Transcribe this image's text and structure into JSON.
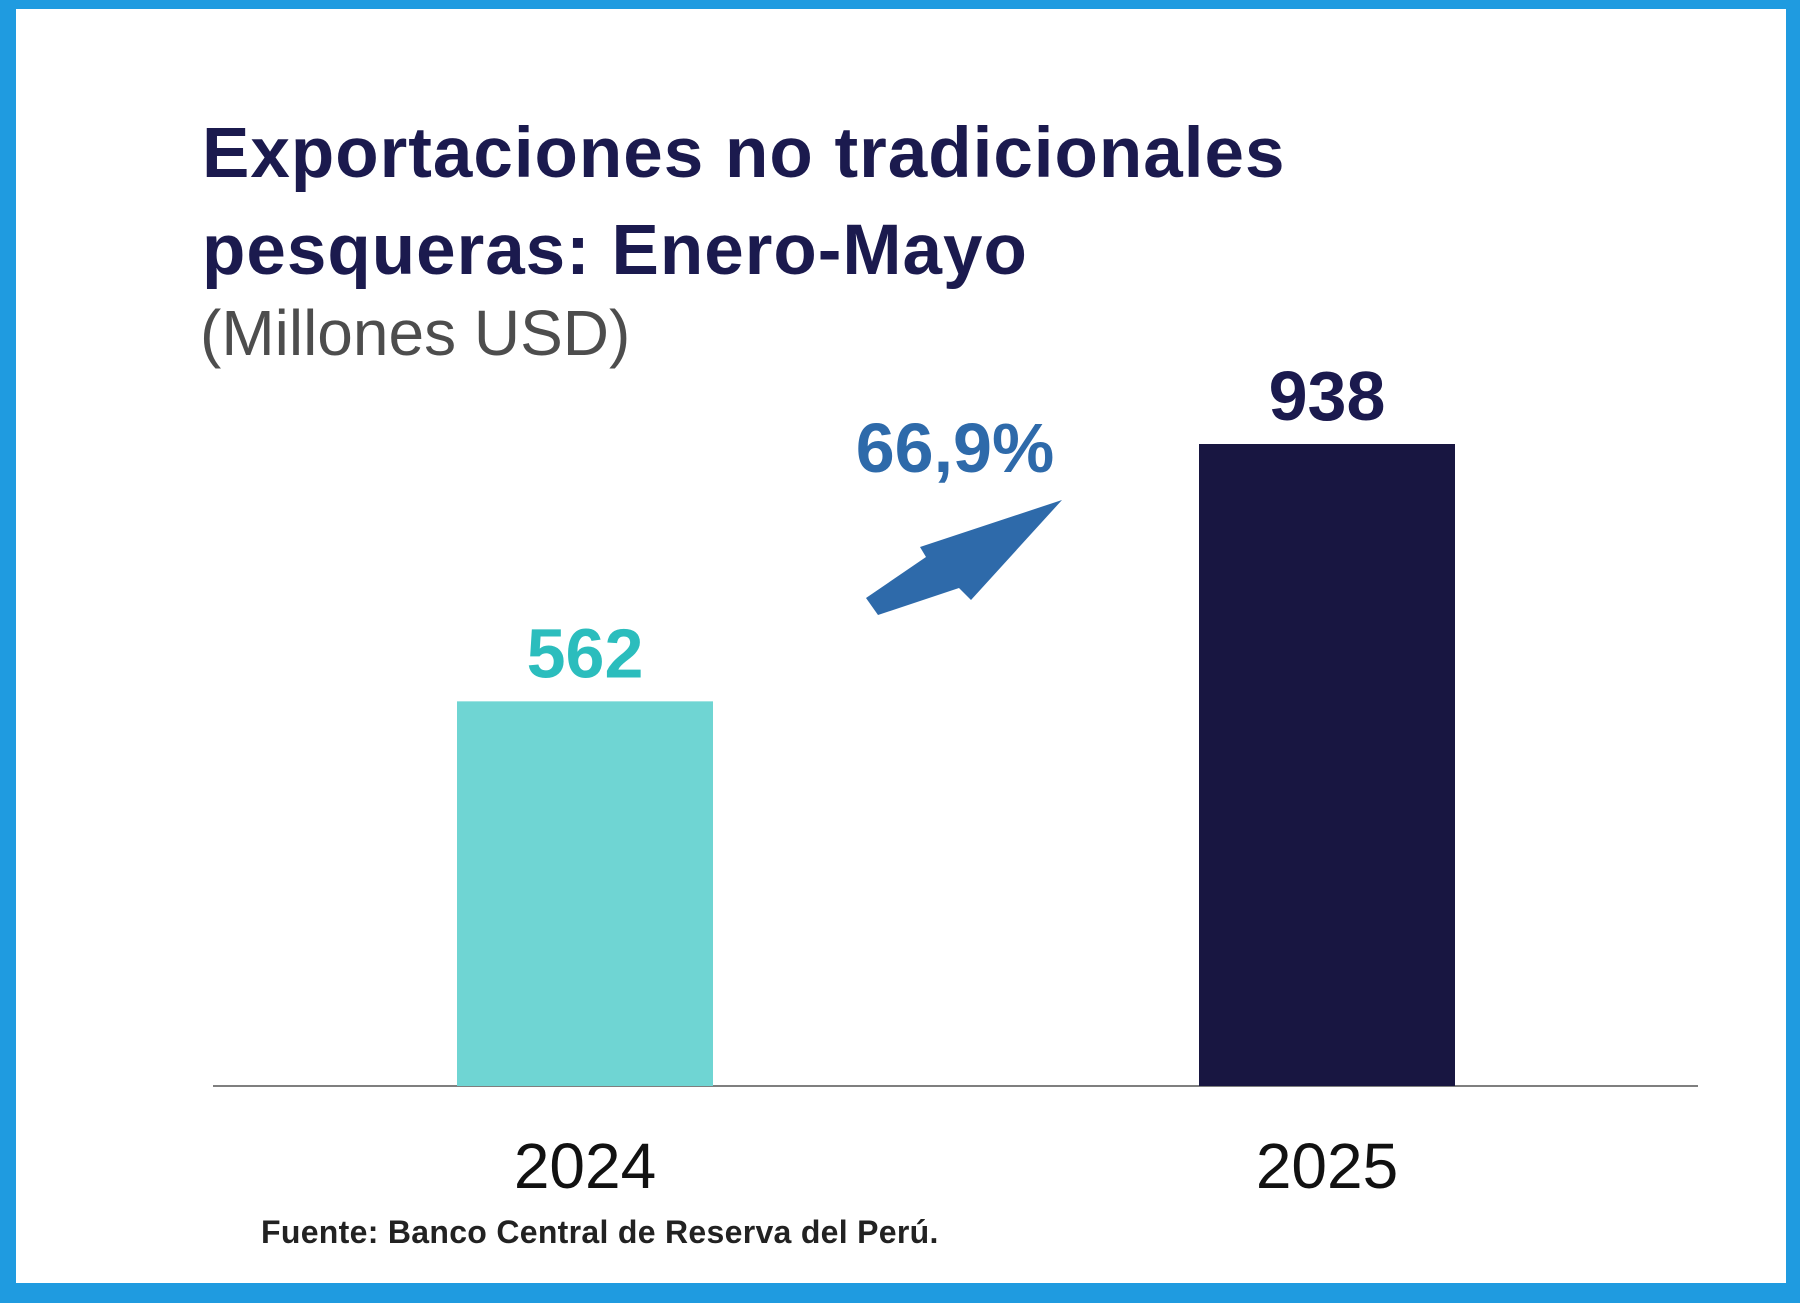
{
  "chart_data": {
    "type": "bar",
    "title": "Exportaciones no tradicionales pesqueras: Enero-Mayo",
    "subtitle": "(Millones USD)",
    "categories": [
      "2024",
      "2025"
    ],
    "values": [
      562,
      938
    ],
    "data_labels": [
      "562",
      "938"
    ],
    "bar_colors": [
      "#6fd5d3",
      "#181641"
    ],
    "label_colors": [
      "#2bbdbd",
      "#1b1a4e"
    ],
    "annotation": {
      "text": "66,9%",
      "color": "#2e6aaa"
    },
    "ylim": [
      0,
      938
    ],
    "grid": false,
    "legend": "none"
  },
  "source": "Fuente: Banco Central de Reserva del Perú."
}
